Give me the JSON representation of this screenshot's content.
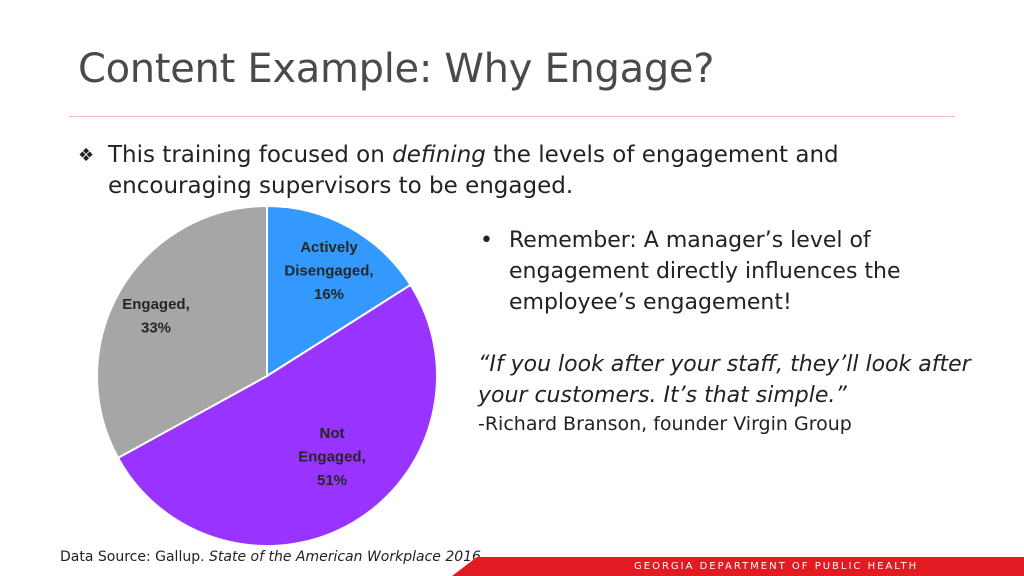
{
  "slide": {
    "title": "Content Example: Why Engage?",
    "bullet_marker": "❖",
    "bullet_pre": "This training focused on ",
    "bullet_em": "defining",
    "bullet_post": " the levels of engagement and encouraging supervisors to be engaged.",
    "remember_marker": "•",
    "remember": "Remember: A manager’s level of engagement directly influences the employee’s engagement!",
    "quote": "“If you look after your staff, they’ll look after your customers. It’s that simple.”",
    "attribution": "-Richard Branson, founder Virgin Group",
    "source_label": "Data Source: Gallup. ",
    "source_title": "State of the American Workplace 2016",
    "footer": "GEORGIA DEPARTMENT OF PUBLIC HEALTH"
  },
  "colors": {
    "actively_disengaged": "#3399ff",
    "not_engaged": "#9933ff",
    "engaged": "#a6a6a6",
    "footer_red": "#e21b23",
    "label_text": "#262626"
  },
  "chart_data": {
    "type": "pie",
    "slices": [
      {
        "label": [
          "Actively",
          "Disengaged,",
          "16%"
        ],
        "value": 16,
        "color": "#3399ff"
      },
      {
        "label": [
          "Not",
          "Engaged,",
          "51%"
        ],
        "value": 51,
        "color": "#9933ff"
      },
      {
        "label": [
          "Engaged,",
          "33%"
        ],
        "value": 33,
        "color": "#a6a6a6"
      }
    ],
    "start": "top",
    "direction": "clockwise"
  }
}
